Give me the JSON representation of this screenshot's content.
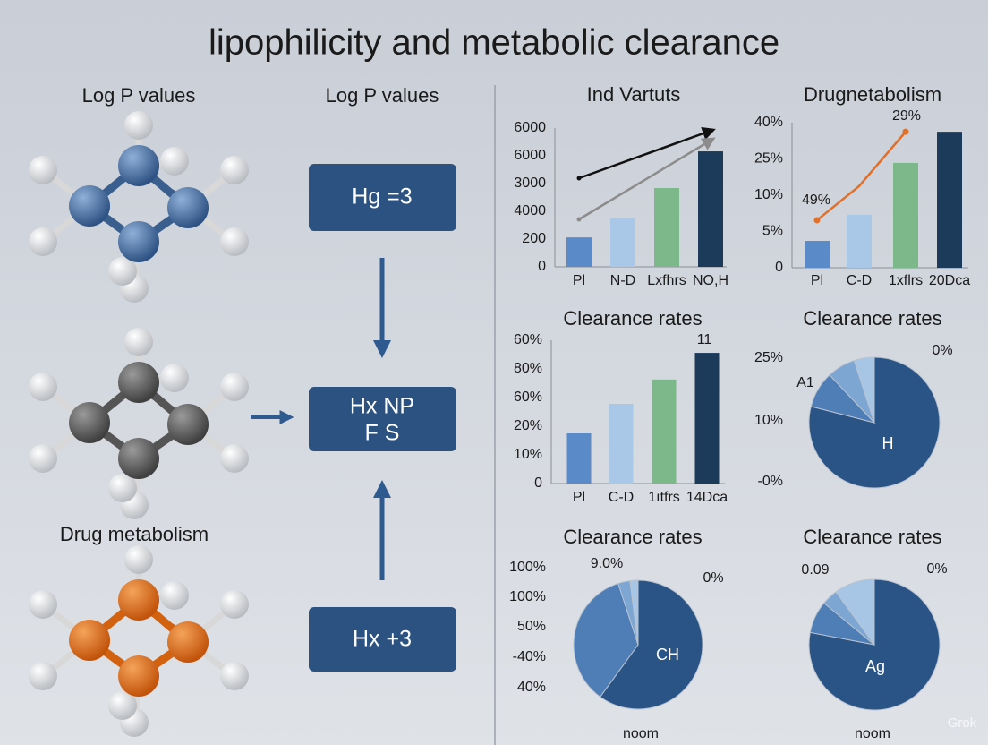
{
  "title": "lipophilicity and metabolic clearance",
  "left": {
    "labels": [
      "Log P values",
      "Drug metabolism"
    ]
  },
  "middle": {
    "heading": "Log P values",
    "boxes": [
      [
        "Hg =3"
      ],
      [
        "Hx NP",
        "F S"
      ],
      [
        "Hx +3"
      ]
    ]
  },
  "panels": [
    {
      "type": "bar",
      "title": "Ind Vartuts",
      "categories": [
        "Pl",
        "N-D",
        "Lxfhrs",
        "NO,H"
      ],
      "values": [
        1.06,
        1.74,
        2.84,
        4.16
      ],
      "colors": [
        "#5b8ac9",
        "#a9c8e8",
        "#7db88a",
        "#1c3a5a"
      ],
      "ylim": [
        0,
        5
      ],
      "yticks": [
        {
          "value": 0,
          "label": "0"
        },
        {
          "value": 1,
          "label": "200"
        },
        {
          "value": 2,
          "label": "4000"
        },
        {
          "value": 3,
          "label": "3000"
        },
        {
          "value": 4,
          "label": "6000"
        },
        {
          "value": 5,
          "label": "6000"
        }
      ]
    },
    {
      "type": "bar",
      "title": "Drugnetabolism",
      "categories": [
        "Pl",
        "C-D",
        "1xflrs",
        "20Dca"
      ],
      "values": [
        0.74,
        1.46,
        2.89,
        3.75
      ],
      "colors": [
        "#5b8ac9",
        "#a9c8e8",
        "#7db88a",
        "#1c3a5a"
      ],
      "ylim": [
        0,
        4
      ],
      "yticks": [
        {
          "value": 0,
          "label": "0"
        },
        {
          "value": 1,
          "label": "5%"
        },
        {
          "value": 2,
          "label": "10%"
        },
        {
          "value": 3,
          "label": "25%"
        },
        {
          "value": 4,
          "label": "40%"
        }
      ],
      "line": {
        "color": "#e0702a",
        "values": [
          1.31,
          2.25,
          3.75,
          null
        ]
      },
      "annotations": [
        "49%",
        "29%"
      ]
    },
    {
      "type": "bar",
      "title": "Clearance rates",
      "categories": [
        "Pl",
        "C-D",
        "1ıtfrs",
        "14Dca"
      ],
      "values": [
        1.75,
        2.78,
        3.63,
        4.56
      ],
      "colors": [
        "#5b8ac9",
        "#a9c8e8",
        "#7db88a",
        "#1c3a5a"
      ],
      "ylim": [
        0,
        5
      ],
      "yticks": [
        {
          "value": 0,
          "label": "0"
        },
        {
          "value": 1,
          "label": "10%"
        },
        {
          "value": 2,
          "label": "20%"
        },
        {
          "value": 3,
          "label": "60%"
        },
        {
          "value": 4,
          "label": "80%"
        },
        {
          "value": 5,
          "label": "60%"
        }
      ],
      "annotations": [
        "11"
      ]
    },
    {
      "type": "pie",
      "title": "Clearance rates",
      "values": [
        79,
        9,
        7,
        5
      ],
      "colors": [
        "#2b5486",
        "#4f7db6",
        "#7ea6d3",
        "#a7c6e6"
      ],
      "side_labels": [
        "25%",
        "10%",
        "-0%"
      ],
      "annotations": [
        "A1",
        "0%",
        "H"
      ]
    },
    {
      "type": "pie",
      "title": "Clearance rates",
      "values": [
        60,
        35,
        3,
        2
      ],
      "colors": [
        "#2b5486",
        "#4f7db6",
        "#7ea6d3",
        "#a7c6e6"
      ],
      "side_labels": [
        "100%",
        "100%",
        "50%",
        "-40%",
        "40%"
      ],
      "annotations": [
        "9.0%",
        "0%",
        "CH",
        "noom"
      ]
    },
    {
      "type": "pie",
      "title": "Clearance rates",
      "values": [
        78,
        8,
        4,
        10
      ],
      "colors": [
        "#2b5486",
        "#4f7db6",
        "#7ea6d3",
        "#a7c6e6"
      ],
      "side_labels": [],
      "annotations": [
        "0.09",
        "0%",
        "Ag",
        "noom"
      ]
    }
  ],
  "watermark": "Grok"
}
